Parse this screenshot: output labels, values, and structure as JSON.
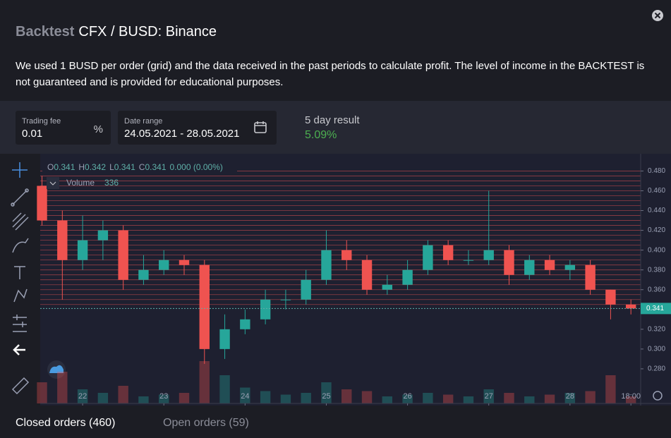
{
  "header": {
    "section": "Backtest",
    "pair": "CFX / BUSD: Binance"
  },
  "description": "We used 1 BUSD per order (grid) and the data received in the past periods to calculate profit. The level of income in the BACKTEST is not guaranteed and is provided for educational purposes.",
  "fields": {
    "trading_fee": {
      "label": "Trading fee",
      "value": 0.01,
      "unit": "%"
    },
    "date_range": {
      "label": "Date range",
      "value": "24.05.2021 - 28.05.2021"
    },
    "result": {
      "label": "5 day result",
      "value": "5.09%"
    }
  },
  "chart_data": {
    "type": "candlestick",
    "legend": [
      {
        "label": "O",
        "value": 0.341
      },
      {
        "label": "H",
        "value": 0.342
      },
      {
        "label": "L",
        "value": 0.341
      },
      {
        "label": "C",
        "value": 0.341
      }
    ],
    "change": "0.000 (0.00%)",
    "volume_legend": {
      "label": "Volume",
      "value": 336
    },
    "last_price": 0.341,
    "x": [
      21.5,
      21.75,
      22,
      22.25,
      22.5,
      22.75,
      23,
      23.25,
      23.5,
      23.75,
      24,
      24.25,
      24.5,
      24.75,
      25,
      25.25,
      25.5,
      25.75,
      26,
      26.25,
      26.5,
      26.75,
      27,
      27.25,
      27.5,
      27.75,
      28,
      28.25,
      28.5,
      28.75
    ],
    "open": [
      0.465,
      0.43,
      0.39,
      0.41,
      0.42,
      0.37,
      0.38,
      0.39,
      0.385,
      0.3,
      0.32,
      0.33,
      0.35,
      0.35,
      0.37,
      0.4,
      0.39,
      0.36,
      0.365,
      0.38,
      0.405,
      0.39,
      0.39,
      0.4,
      0.375,
      0.39,
      0.38,
      0.385,
      0.36,
      0.345
    ],
    "high": [
      0.475,
      0.44,
      0.435,
      0.43,
      0.425,
      0.395,
      0.4,
      0.395,
      0.39,
      0.335,
      0.34,
      0.36,
      0.36,
      0.38,
      0.42,
      0.41,
      0.395,
      0.375,
      0.39,
      0.41,
      0.41,
      0.4,
      0.46,
      0.405,
      0.395,
      0.395,
      0.39,
      0.39,
      0.36,
      0.35
    ],
    "low": [
      0.425,
      0.35,
      0.38,
      0.39,
      0.36,
      0.365,
      0.375,
      0.375,
      0.285,
      0.29,
      0.315,
      0.325,
      0.34,
      0.345,
      0.365,
      0.38,
      0.355,
      0.355,
      0.36,
      0.375,
      0.385,
      0.385,
      0.385,
      0.365,
      0.37,
      0.375,
      0.37,
      0.355,
      0.33,
      0.335
    ],
    "close": [
      0.43,
      0.39,
      0.41,
      0.42,
      0.37,
      0.38,
      0.39,
      0.385,
      0.3,
      0.32,
      0.33,
      0.35,
      0.35,
      0.37,
      0.4,
      0.39,
      0.36,
      0.365,
      0.38,
      0.405,
      0.39,
      0.39,
      0.4,
      0.375,
      0.39,
      0.38,
      0.385,
      0.36,
      0.345,
      0.341
    ],
    "volume": [
      60,
      90,
      40,
      30,
      50,
      20,
      25,
      30,
      120,
      80,
      45,
      35,
      25,
      30,
      60,
      40,
      35,
      20,
      25,
      30,
      25,
      20,
      40,
      30,
      20,
      25,
      30,
      35,
      80,
      20
    ],
    "grid_levels": [
      0.345,
      0.35,
      0.355,
      0.36,
      0.365,
      0.37,
      0.375,
      0.38,
      0.385,
      0.39,
      0.395,
      0.4,
      0.405,
      0.41,
      0.415,
      0.42,
      0.425,
      0.43,
      0.435,
      0.44,
      0.445,
      0.45,
      0.455,
      0.46,
      0.465,
      0.47,
      0.475,
      0.48
    ],
    "up_color": "#26a69a",
    "down_color": "#ef5350",
    "xlim": [
      21.478,
      28.87
    ],
    "ylim": [
      0.245,
      0.496
    ],
    "xticks": [
      {
        "value": 22,
        "label": "22"
      },
      {
        "value": 23,
        "label": "23"
      },
      {
        "value": 24,
        "label": "24"
      },
      {
        "value": 25,
        "label": "25"
      },
      {
        "value": 26,
        "label": "26"
      },
      {
        "value": 27,
        "label": "27"
      },
      {
        "value": 28,
        "label": "28"
      },
      {
        "value": 28.75,
        "label": "18:00"
      }
    ],
    "yticks": [
      {
        "value": 0.48,
        "label": "0.480"
      },
      {
        "value": 0.46,
        "label": "0.460"
      },
      {
        "value": 0.44,
        "label": "0.440"
      },
      {
        "value": 0.42,
        "label": "0.420"
      },
      {
        "value": 0.4,
        "label": "0.400"
      },
      {
        "value": 0.38,
        "label": "0.380"
      },
      {
        "value": 0.36,
        "label": "0.360"
      },
      {
        "value": 0.32,
        "label": "0.320"
      },
      {
        "value": 0.3,
        "label": "0.300"
      },
      {
        "value": 0.28,
        "label": "0.280"
      }
    ]
  },
  "tabs": [
    "Closed orders (460)",
    "Open orders (59)"
  ]
}
